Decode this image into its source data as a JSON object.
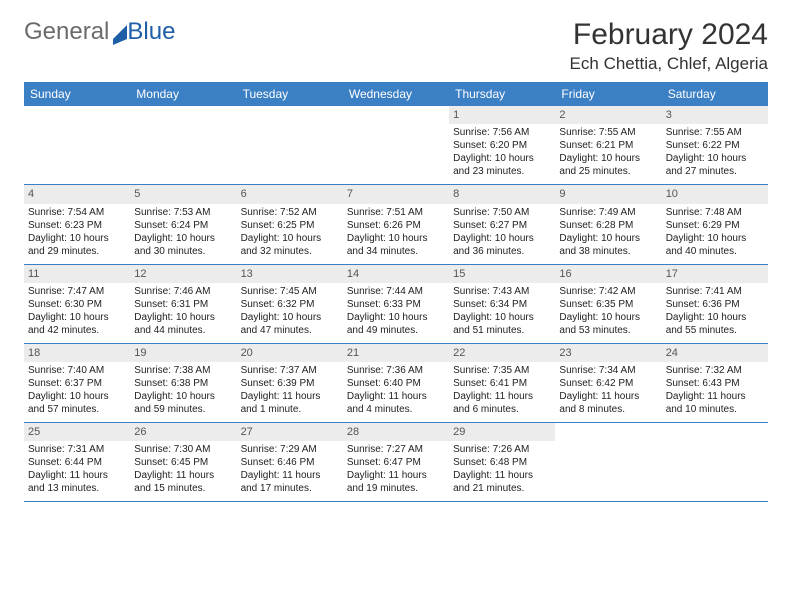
{
  "logo": {
    "part1": "General",
    "part2": "Blue"
  },
  "header": {
    "title": "February 2024",
    "location": "Ech Chettia, Chlef, Algeria"
  },
  "day_names": [
    "Sunday",
    "Monday",
    "Tuesday",
    "Wednesday",
    "Thursday",
    "Friday",
    "Saturday"
  ],
  "weeks": [
    [
      null,
      null,
      null,
      null,
      {
        "n": "1",
        "sr": "Sunrise: 7:56 AM",
        "ss": "Sunset: 6:20 PM",
        "dl1": "Daylight: 10 hours",
        "dl2": "and 23 minutes."
      },
      {
        "n": "2",
        "sr": "Sunrise: 7:55 AM",
        "ss": "Sunset: 6:21 PM",
        "dl1": "Daylight: 10 hours",
        "dl2": "and 25 minutes."
      },
      {
        "n": "3",
        "sr": "Sunrise: 7:55 AM",
        "ss": "Sunset: 6:22 PM",
        "dl1": "Daylight: 10 hours",
        "dl2": "and 27 minutes."
      }
    ],
    [
      {
        "n": "4",
        "sr": "Sunrise: 7:54 AM",
        "ss": "Sunset: 6:23 PM",
        "dl1": "Daylight: 10 hours",
        "dl2": "and 29 minutes."
      },
      {
        "n": "5",
        "sr": "Sunrise: 7:53 AM",
        "ss": "Sunset: 6:24 PM",
        "dl1": "Daylight: 10 hours",
        "dl2": "and 30 minutes."
      },
      {
        "n": "6",
        "sr": "Sunrise: 7:52 AM",
        "ss": "Sunset: 6:25 PM",
        "dl1": "Daylight: 10 hours",
        "dl2": "and 32 minutes."
      },
      {
        "n": "7",
        "sr": "Sunrise: 7:51 AM",
        "ss": "Sunset: 6:26 PM",
        "dl1": "Daylight: 10 hours",
        "dl2": "and 34 minutes."
      },
      {
        "n": "8",
        "sr": "Sunrise: 7:50 AM",
        "ss": "Sunset: 6:27 PM",
        "dl1": "Daylight: 10 hours",
        "dl2": "and 36 minutes."
      },
      {
        "n": "9",
        "sr": "Sunrise: 7:49 AM",
        "ss": "Sunset: 6:28 PM",
        "dl1": "Daylight: 10 hours",
        "dl2": "and 38 minutes."
      },
      {
        "n": "10",
        "sr": "Sunrise: 7:48 AM",
        "ss": "Sunset: 6:29 PM",
        "dl1": "Daylight: 10 hours",
        "dl2": "and 40 minutes."
      }
    ],
    [
      {
        "n": "11",
        "sr": "Sunrise: 7:47 AM",
        "ss": "Sunset: 6:30 PM",
        "dl1": "Daylight: 10 hours",
        "dl2": "and 42 minutes."
      },
      {
        "n": "12",
        "sr": "Sunrise: 7:46 AM",
        "ss": "Sunset: 6:31 PM",
        "dl1": "Daylight: 10 hours",
        "dl2": "and 44 minutes."
      },
      {
        "n": "13",
        "sr": "Sunrise: 7:45 AM",
        "ss": "Sunset: 6:32 PM",
        "dl1": "Daylight: 10 hours",
        "dl2": "and 47 minutes."
      },
      {
        "n": "14",
        "sr": "Sunrise: 7:44 AM",
        "ss": "Sunset: 6:33 PM",
        "dl1": "Daylight: 10 hours",
        "dl2": "and 49 minutes."
      },
      {
        "n": "15",
        "sr": "Sunrise: 7:43 AM",
        "ss": "Sunset: 6:34 PM",
        "dl1": "Daylight: 10 hours",
        "dl2": "and 51 minutes."
      },
      {
        "n": "16",
        "sr": "Sunrise: 7:42 AM",
        "ss": "Sunset: 6:35 PM",
        "dl1": "Daylight: 10 hours",
        "dl2": "and 53 minutes."
      },
      {
        "n": "17",
        "sr": "Sunrise: 7:41 AM",
        "ss": "Sunset: 6:36 PM",
        "dl1": "Daylight: 10 hours",
        "dl2": "and 55 minutes."
      }
    ],
    [
      {
        "n": "18",
        "sr": "Sunrise: 7:40 AM",
        "ss": "Sunset: 6:37 PM",
        "dl1": "Daylight: 10 hours",
        "dl2": "and 57 minutes."
      },
      {
        "n": "19",
        "sr": "Sunrise: 7:38 AM",
        "ss": "Sunset: 6:38 PM",
        "dl1": "Daylight: 10 hours",
        "dl2": "and 59 minutes."
      },
      {
        "n": "20",
        "sr": "Sunrise: 7:37 AM",
        "ss": "Sunset: 6:39 PM",
        "dl1": "Daylight: 11 hours",
        "dl2": "and 1 minute."
      },
      {
        "n": "21",
        "sr": "Sunrise: 7:36 AM",
        "ss": "Sunset: 6:40 PM",
        "dl1": "Daylight: 11 hours",
        "dl2": "and 4 minutes."
      },
      {
        "n": "22",
        "sr": "Sunrise: 7:35 AM",
        "ss": "Sunset: 6:41 PM",
        "dl1": "Daylight: 11 hours",
        "dl2": "and 6 minutes."
      },
      {
        "n": "23",
        "sr": "Sunrise: 7:34 AM",
        "ss": "Sunset: 6:42 PM",
        "dl1": "Daylight: 11 hours",
        "dl2": "and 8 minutes."
      },
      {
        "n": "24",
        "sr": "Sunrise: 7:32 AM",
        "ss": "Sunset: 6:43 PM",
        "dl1": "Daylight: 11 hours",
        "dl2": "and 10 minutes."
      }
    ],
    [
      {
        "n": "25",
        "sr": "Sunrise: 7:31 AM",
        "ss": "Sunset: 6:44 PM",
        "dl1": "Daylight: 11 hours",
        "dl2": "and 13 minutes."
      },
      {
        "n": "26",
        "sr": "Sunrise: 7:30 AM",
        "ss": "Sunset: 6:45 PM",
        "dl1": "Daylight: 11 hours",
        "dl2": "and 15 minutes."
      },
      {
        "n": "27",
        "sr": "Sunrise: 7:29 AM",
        "ss": "Sunset: 6:46 PM",
        "dl1": "Daylight: 11 hours",
        "dl2": "and 17 minutes."
      },
      {
        "n": "28",
        "sr": "Sunrise: 7:27 AM",
        "ss": "Sunset: 6:47 PM",
        "dl1": "Daylight: 11 hours",
        "dl2": "and 19 minutes."
      },
      {
        "n": "29",
        "sr": "Sunrise: 7:26 AM",
        "ss": "Sunset: 6:48 PM",
        "dl1": "Daylight: 11 hours",
        "dl2": "and 21 minutes."
      },
      null,
      null
    ]
  ],
  "colors": {
    "accent": "#3b7fc4",
    "daynum_bg": "#ececec",
    "logo_gray": "#6b6b6b",
    "logo_blue": "#1e5fa8"
  }
}
